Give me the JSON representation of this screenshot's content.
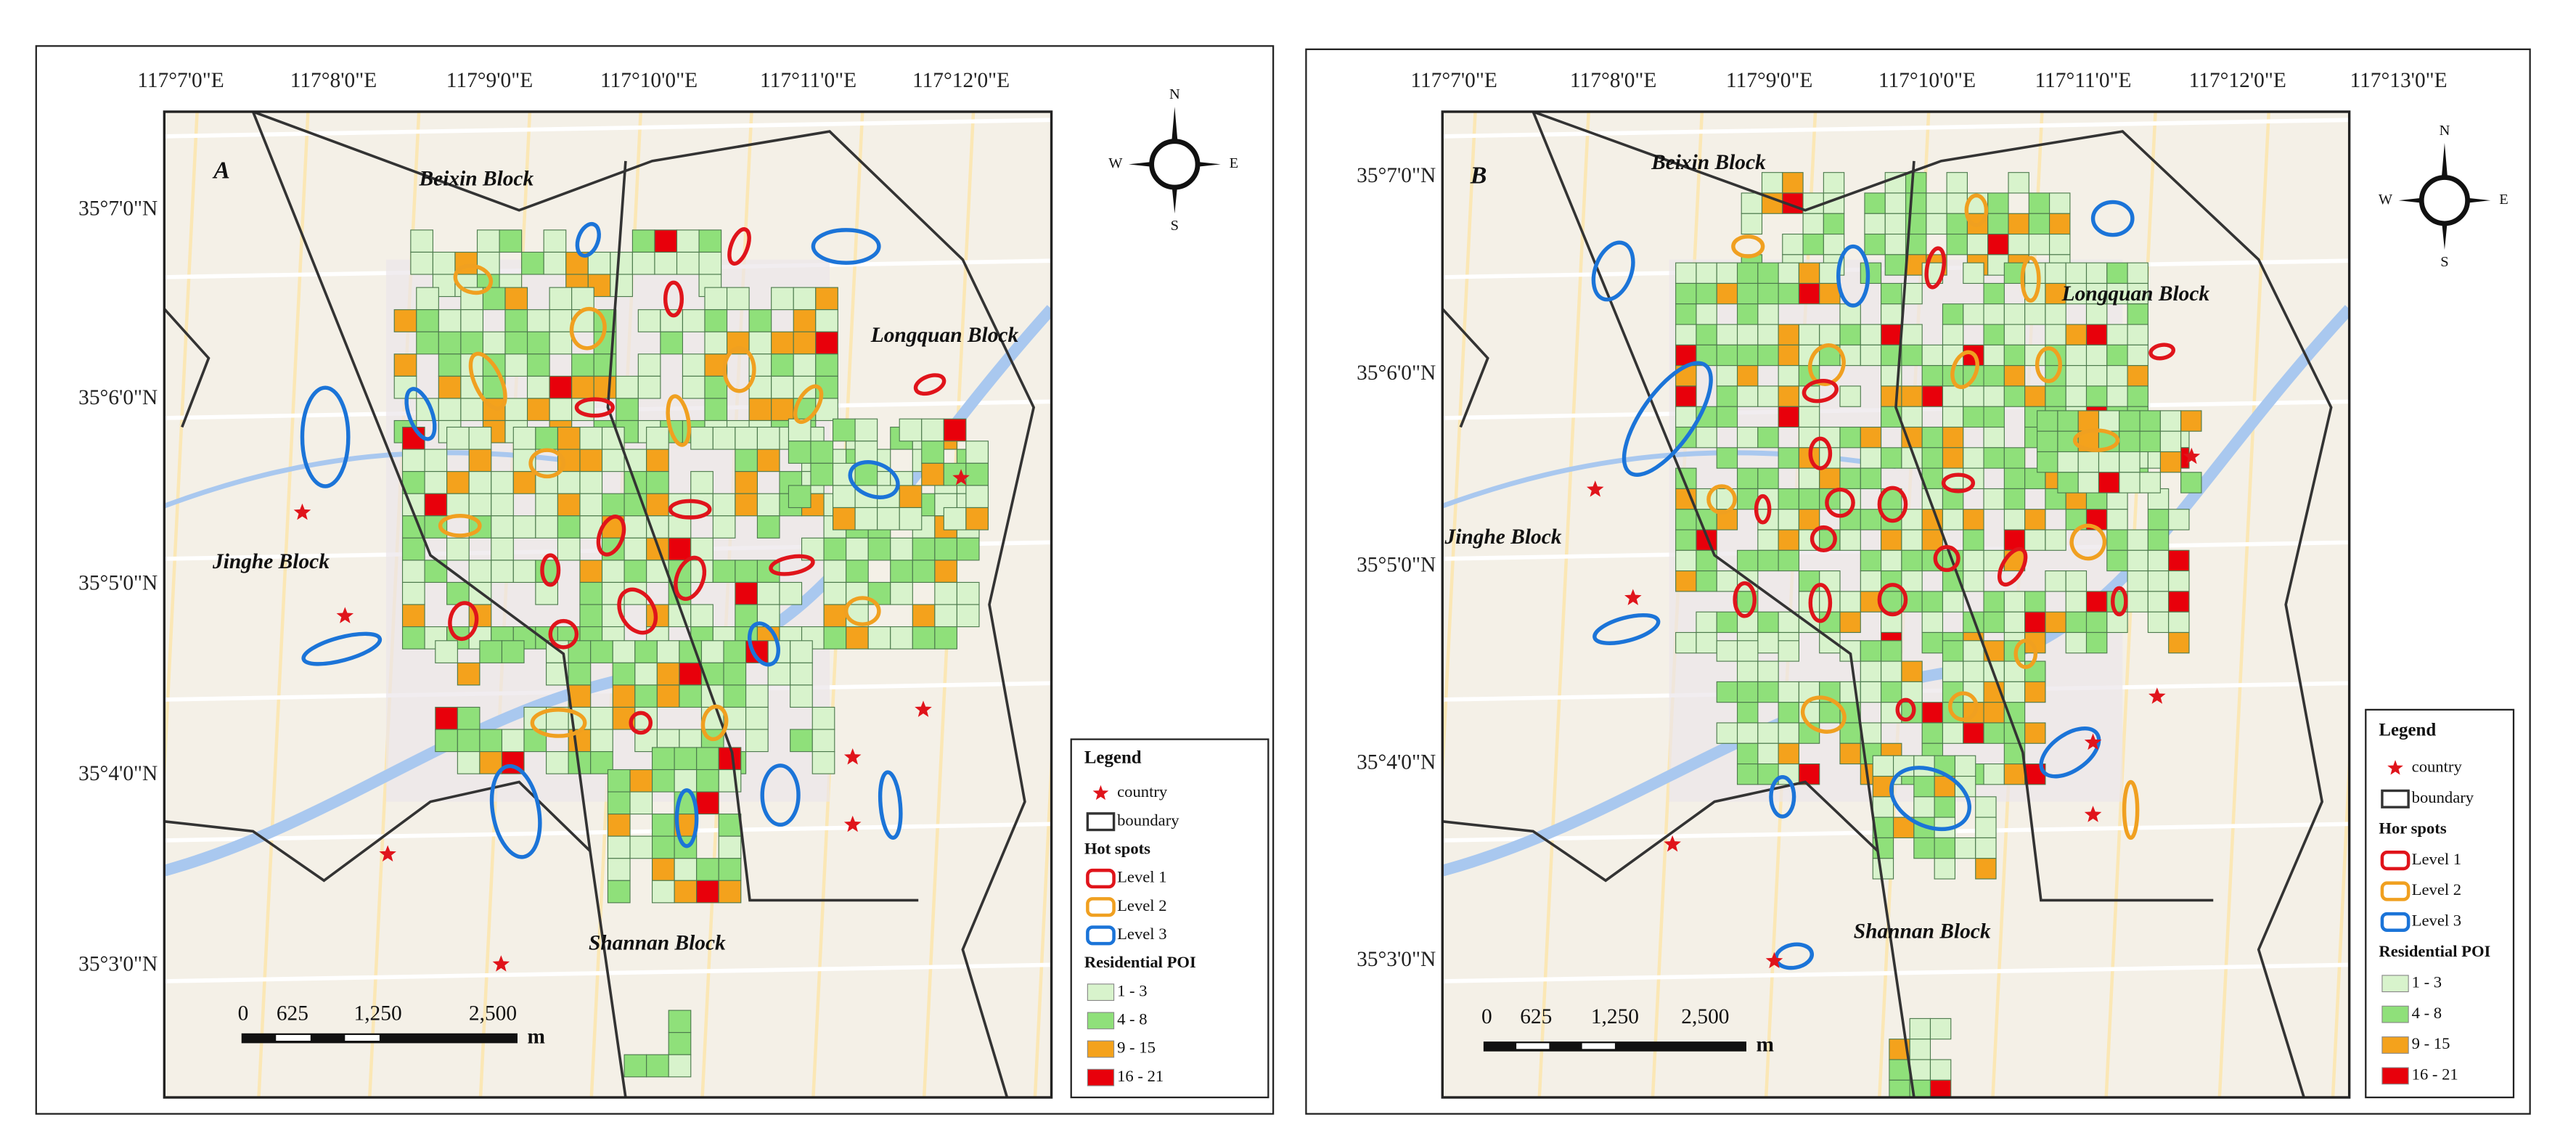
{
  "panels": [
    {
      "label": "A",
      "x_labels": [
        "117°7'0\"E",
        "117°8'0\"E",
        "117°9'0\"E",
        "117°10'0\"E",
        "117°11'0\"E",
        "117°12'0\"E"
      ],
      "y_labels": [
        "35°7'0\"N",
        "35°6'0\"N",
        "35°5'0\"N",
        "35°4'0\"N",
        "35°3'0\"N"
      ],
      "blocks": [
        "Beixin Block",
        "Longquan Block",
        "Jinghe Block",
        "Shannan Block"
      ],
      "scale_labels": [
        "0",
        "625",
        "1,250",
        "2,500"
      ],
      "scale_unit": "m",
      "compass": [
        "N",
        "S",
        "W",
        "E"
      ],
      "legend": {
        "title": "Legend",
        "country": "country",
        "boundary": "boundary",
        "hot_spots": "Hot spots",
        "levels": [
          "Level 1",
          "Level 2",
          "Level 3"
        ],
        "poi": "Residential POI",
        "classes": [
          "1 - 3",
          "4 - 8",
          "9 - 15",
          "16 - 21"
        ]
      }
    },
    {
      "label": "B",
      "x_labels": [
        "117°7'0\"E",
        "117°8'0\"E",
        "117°9'0\"E",
        "117°10'0\"E",
        "117°11'0\"E",
        "117°12'0\"E",
        "117°13'0\"E"
      ],
      "y_labels": [
        "35°7'0\"N",
        "35°6'0\"N",
        "35°5'0\"N",
        "35°4'0\"N",
        "35°3'0\"N"
      ],
      "blocks": [
        "Beixin Block",
        "Longquan Block",
        "Jinghe Block",
        "Shannan Block"
      ],
      "scale_labels": [
        "0",
        "625",
        "1,250",
        "2,500"
      ],
      "scale_unit": "m",
      "compass": [
        "N",
        "S",
        "W",
        "E"
      ],
      "legend": {
        "title": "Legend",
        "country": "country",
        "boundary": "boundary",
        "hot_spots": "Hor spots",
        "levels": [
          "Level 1",
          "Level 2",
          "Level 3"
        ],
        "poi": "Residential POI",
        "classes": [
          "1 - 3",
          "4 - 8",
          "9 - 15",
          "16 - 21"
        ]
      }
    }
  ]
}
